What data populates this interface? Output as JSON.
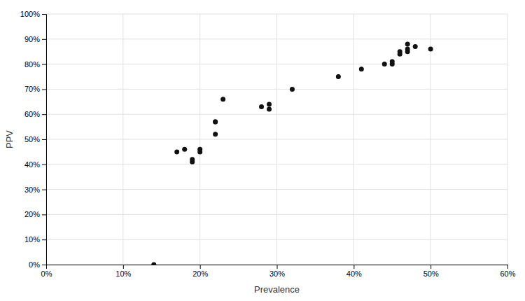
{
  "chart_data": {
    "type": "scatter",
    "x": [
      0.14,
      0.17,
      0.18,
      0.19,
      0.19,
      0.2,
      0.2,
      0.22,
      0.22,
      0.22,
      0.23,
      0.28,
      0.29,
      0.29,
      0.32,
      0.38,
      0.41,
      0.44,
      0.45,
      0.45,
      0.46,
      0.46,
      0.47,
      0.47,
      0.47,
      0.48,
      0.5
    ],
    "values": [
      0.0,
      0.45,
      0.46,
      0.41,
      0.42,
      0.45,
      0.46,
      0.52,
      0.57,
      0.57,
      0.66,
      0.63,
      0.64,
      0.62,
      0.7,
      0.75,
      0.78,
      0.8,
      0.8,
      0.81,
      0.84,
      0.85,
      0.85,
      0.86,
      0.88,
      0.87,
      0.86
    ],
    "xlabel": "Prevalence",
    "ylabel": "PPV",
    "xlim": [
      0.0,
      0.6
    ],
    "ylim": [
      0.0,
      1.0
    ],
    "xticks": [
      {
        "value": 0.0,
        "label": "0%"
      },
      {
        "value": 0.1,
        "label": "10%"
      },
      {
        "value": 0.2,
        "label": "20%"
      },
      {
        "value": 0.3,
        "label": "30%"
      },
      {
        "value": 0.4,
        "label": "40%"
      },
      {
        "value": 0.5,
        "label": "50%"
      },
      {
        "value": 0.6,
        "label": "60%"
      }
    ],
    "yticks": [
      {
        "value": 0.0,
        "label": "0%"
      },
      {
        "value": 0.1,
        "label": "10%"
      },
      {
        "value": 0.2,
        "label": "20%"
      },
      {
        "value": 0.3,
        "label": "30%"
      },
      {
        "value": 0.4,
        "label": "40%"
      },
      {
        "value": 0.5,
        "label": "50%"
      },
      {
        "value": 0.6,
        "label": "60%"
      },
      {
        "value": 0.7,
        "label": "70%"
      },
      {
        "value": 0.8,
        "label": "80%"
      },
      {
        "value": 0.9,
        "label": "90%"
      },
      {
        "value": 1.0,
        "label": "100%"
      }
    ],
    "grid": true,
    "color": "#111111"
  }
}
